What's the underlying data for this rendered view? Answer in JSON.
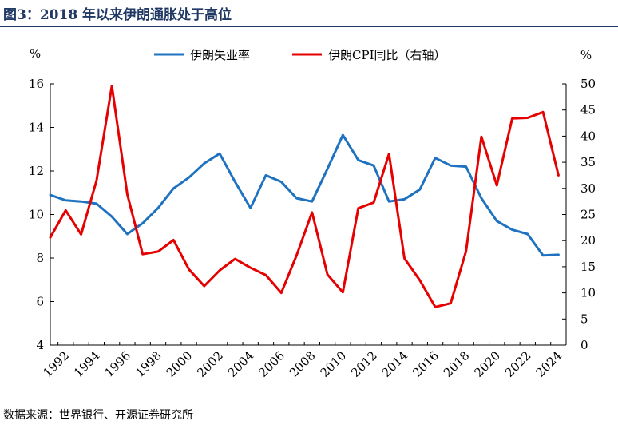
{
  "header": {
    "title": "图3：2018 年以来伊朗通胀处于高位"
  },
  "footer": {
    "source": "数据来源：世界银行、开源证券研究所"
  },
  "colors": {
    "series1": "#1f72c0",
    "series2": "#e60000",
    "axis": "#000000",
    "title": "#1f3864"
  },
  "chart_data": {
    "type": "line",
    "x": [
      1991,
      1992,
      1993,
      1994,
      1995,
      1996,
      1997,
      1998,
      1999,
      2000,
      2001,
      2002,
      2003,
      2004,
      2005,
      2006,
      2007,
      2008,
      2009,
      2010,
      2011,
      2012,
      2013,
      2014,
      2015,
      2016,
      2017,
      2018,
      2019,
      2020,
      2021,
      2022,
      2023,
      2024
    ],
    "xticks": [
      "1992",
      "1994",
      "1996",
      "1998",
      "2000",
      "2002",
      "2004",
      "2006",
      "2008",
      "2010",
      "2012",
      "2014",
      "2016",
      "2018",
      "2020",
      "2022",
      "2024"
    ],
    "y_left": {
      "unit": "%",
      "ticks": [
        "4",
        "6",
        "8",
        "10",
        "12",
        "14",
        "16"
      ],
      "range": [
        4,
        16
      ]
    },
    "y_right": {
      "unit": "%",
      "ticks": [
        "0",
        "5",
        "10",
        "15",
        "20",
        "25",
        "30",
        "35",
        "40",
        "45",
        "50"
      ],
      "range": [
        0,
        50
      ]
    },
    "legend_position": "top",
    "series": [
      {
        "name": "伊朗失业率",
        "axis": "left",
        "values": [
          10.9,
          10.65,
          10.6,
          10.5,
          9.9,
          9.1,
          9.6,
          10.3,
          11.2,
          11.7,
          12.35,
          12.8,
          11.5,
          10.3,
          11.8,
          11.5,
          10.75,
          10.6,
          12.1,
          13.65,
          12.5,
          12.25,
          10.6,
          10.7,
          11.15,
          12.6,
          12.25,
          12.2,
          10.75,
          9.7,
          9.3,
          9.1,
          8.12,
          8.15
        ]
      },
      {
        "name": "伊朗CPI同比（右轴）",
        "axis": "right",
        "values": [
          20.6,
          25.8,
          21.2,
          31.5,
          49.6,
          28.9,
          17.4,
          17.9,
          20.1,
          14.5,
          11.3,
          14.3,
          16.5,
          14.8,
          13.4,
          10.0,
          17.2,
          25.4,
          13.5,
          10.1,
          26.2,
          27.3,
          36.6,
          16.6,
          12.4,
          7.3,
          8.0,
          18.0,
          39.9,
          30.6,
          43.4,
          43.5,
          44.6,
          32.5
        ]
      }
    ]
  }
}
